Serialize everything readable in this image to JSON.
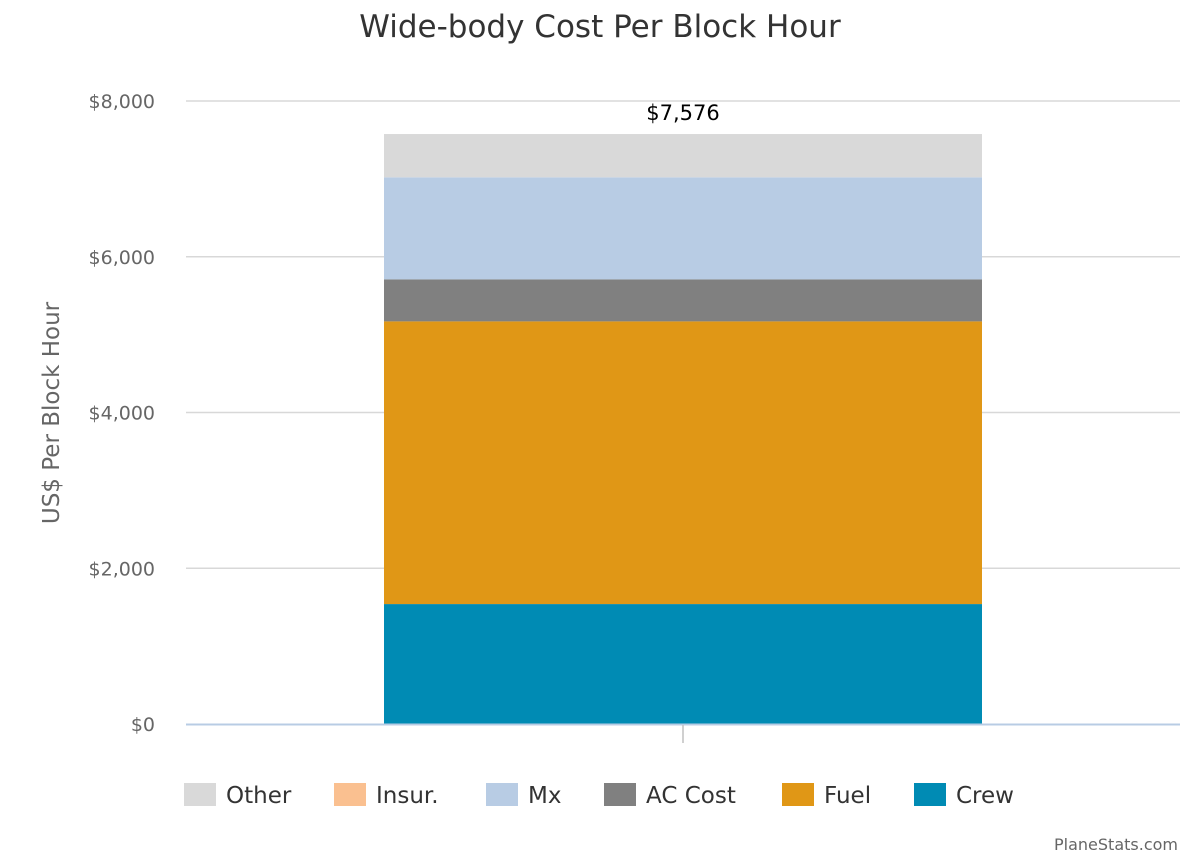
{
  "chart_data": {
    "type": "bar",
    "stacked": true,
    "title": "Wide-body Cost Per Block Hour",
    "ylabel": "US$ Per Block Hour",
    "xlabel": "",
    "ylim": [
      0,
      8000
    ],
    "yticks": [
      0,
      2000,
      4000,
      6000,
      8000
    ],
    "ytick_labels": [
      "$0",
      "$2,000",
      "$4,000",
      "$6,000",
      "$8,000"
    ],
    "grid": true,
    "legend_position": "bottom",
    "total_label": "$7,576",
    "total": 7576,
    "series": [
      {
        "name": "Crew",
        "value": 1540,
        "color": "#008bb4"
      },
      {
        "name": "Fuel",
        "value": 3630,
        "color": "#e09716"
      },
      {
        "name": "AC Cost",
        "value": 540,
        "color": "#808080"
      },
      {
        "name": "Mx",
        "value": 1310,
        "color": "#b8cce4"
      },
      {
        "name": "Insur.",
        "value": 0,
        "color": "#fac090"
      },
      {
        "name": "Other",
        "value": 556,
        "color": "#d9d9d9"
      }
    ],
    "legend_order": [
      "Other",
      "Insur.",
      "Mx",
      "AC Cost",
      "Fuel",
      "Crew"
    ]
  },
  "credit": "PlaneStats.com"
}
